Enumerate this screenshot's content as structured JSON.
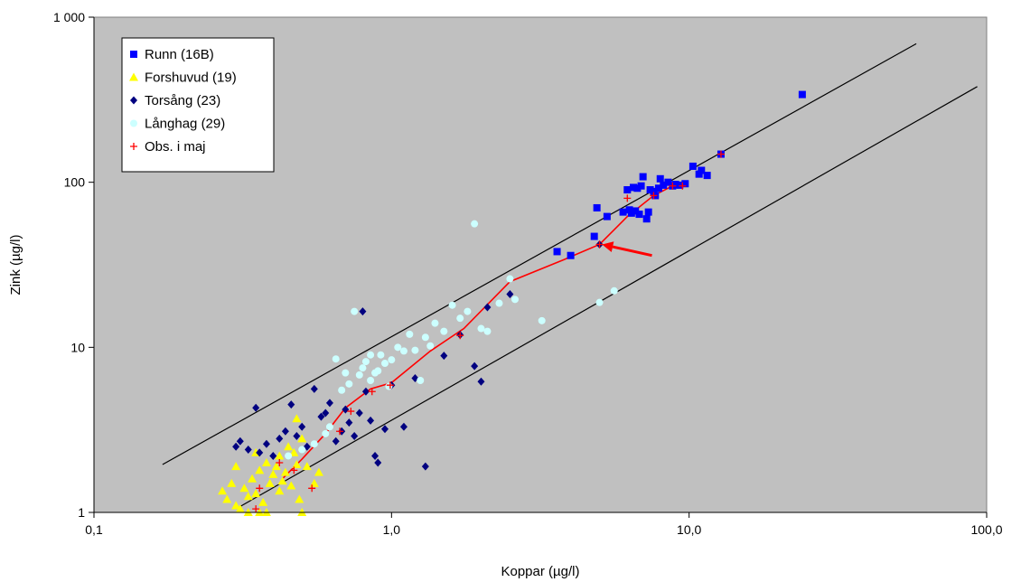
{
  "chart_data": {
    "type": "scatter",
    "x_scale": "log",
    "y_scale": "log",
    "xlim": [
      0.1,
      100
    ],
    "ylim": [
      1,
      1000
    ],
    "xlabel": "Koppar (µg/l)",
    "ylabel": "Zink (µg/l)",
    "x_ticks": [
      {
        "value": 0.1,
        "label": "0,1"
      },
      {
        "value": 1,
        "label": "1,0"
      },
      {
        "value": 10,
        "label": "10,0"
      },
      {
        "value": 100,
        "label": "100,0"
      }
    ],
    "y_ticks": [
      {
        "value": 1,
        "label": "1"
      },
      {
        "value": 10,
        "label": "10"
      },
      {
        "value": 100,
        "label": "100"
      },
      {
        "value": 1000,
        "label": "1 000"
      }
    ],
    "grid": false,
    "legend_position": "top-left",
    "plot_background": "#c0c0c0",
    "series": [
      {
        "name": "Runn (16B)",
        "marker": "square",
        "color": "#0000ff",
        "points": [
          [
            24.0,
            340
          ],
          [
            12.8,
            148
          ],
          [
            11.5,
            110
          ],
          [
            11.0,
            118
          ],
          [
            10.8,
            112
          ],
          [
            10.3,
            125
          ],
          [
            9.7,
            98
          ],
          [
            9.3,
            96
          ],
          [
            9.0,
            97
          ],
          [
            8.8,
            95
          ],
          [
            8.5,
            100
          ],
          [
            8.2,
            96
          ],
          [
            8.0,
            105
          ],
          [
            7.9,
            92
          ],
          [
            7.7,
            83
          ],
          [
            7.6,
            88
          ],
          [
            7.4,
            90
          ],
          [
            7.3,
            66
          ],
          [
            7.2,
            60
          ],
          [
            7.0,
            108
          ],
          [
            6.9,
            95
          ],
          [
            6.8,
            64
          ],
          [
            6.7,
            92
          ],
          [
            6.6,
            67
          ],
          [
            6.5,
            93
          ],
          [
            6.4,
            65
          ],
          [
            6.3,
            68
          ],
          [
            6.2,
            90
          ],
          [
            6.0,
            66
          ],
          [
            5.3,
            62
          ],
          [
            4.9,
            70
          ],
          [
            4.8,
            47
          ],
          [
            4.0,
            36
          ],
          [
            3.6,
            38
          ]
        ]
      },
      {
        "name": "Forshuvud (19)",
        "marker": "triangle",
        "color": "#ffff00",
        "points": [
          [
            0.27,
            1.35
          ],
          [
            0.28,
            1.2
          ],
          [
            0.29,
            1.5
          ],
          [
            0.3,
            1.1
          ],
          [
            0.31,
            1.05
          ],
          [
            0.32,
            1.4
          ],
          [
            0.33,
            1.25
          ],
          [
            0.34,
            1.6
          ],
          [
            0.35,
            1.3
          ],
          [
            0.36,
            1.8
          ],
          [
            0.37,
            1.15
          ],
          [
            0.38,
            2.0
          ],
          [
            0.39,
            1.5
          ],
          [
            0.4,
            1.7
          ],
          [
            0.41,
            1.9
          ],
          [
            0.42,
            2.2
          ],
          [
            0.43,
            1.55
          ],
          [
            0.44,
            1.75
          ],
          [
            0.45,
            2.5
          ],
          [
            0.46,
            1.45
          ],
          [
            0.47,
            2.3
          ],
          [
            0.48,
            1.95
          ],
          [
            0.49,
            1.2
          ],
          [
            0.5,
            2.8
          ],
          [
            0.52,
            1.9
          ],
          [
            0.55,
            1.5
          ],
          [
            0.57,
            1.75
          ],
          [
            0.33,
            1.0
          ],
          [
            0.36,
            1.0
          ],
          [
            0.48,
            3.7
          ],
          [
            0.5,
            1.0
          ],
          [
            0.3,
            1.9
          ],
          [
            0.35,
            2.3
          ],
          [
            0.38,
            1.0
          ],
          [
            0.42,
            1.35
          ]
        ]
      },
      {
        "name": "Torsång (23)",
        "marker": "diamond",
        "color": "#000080",
        "points": [
          [
            0.3,
            2.5
          ],
          [
            0.31,
            2.7
          ],
          [
            0.33,
            2.4
          ],
          [
            0.35,
            4.3
          ],
          [
            0.36,
            2.3
          ],
          [
            0.38,
            2.6
          ],
          [
            0.4,
            2.2
          ],
          [
            0.42,
            2.8
          ],
          [
            0.44,
            3.1
          ],
          [
            0.46,
            4.5
          ],
          [
            0.48,
            2.9
          ],
          [
            0.5,
            3.3
          ],
          [
            0.52,
            2.5
          ],
          [
            0.55,
            5.6
          ],
          [
            0.58,
            3.8
          ],
          [
            0.6,
            4.0
          ],
          [
            0.62,
            4.6
          ],
          [
            0.65,
            2.7
          ],
          [
            0.68,
            3.1
          ],
          [
            0.7,
            4.2
          ],
          [
            0.72,
            3.5
          ],
          [
            0.75,
            2.9
          ],
          [
            0.78,
            4.0
          ],
          [
            0.8,
            16.5
          ],
          [
            0.82,
            5.4
          ],
          [
            0.85,
            3.6
          ],
          [
            0.88,
            2.2
          ],
          [
            0.9,
            2.0
          ],
          [
            0.95,
            3.2
          ],
          [
            1.0,
            5.9
          ],
          [
            1.1,
            3.3
          ],
          [
            1.2,
            6.5
          ],
          [
            1.3,
            1.9
          ],
          [
            1.5,
            8.9
          ],
          [
            1.7,
            11.9
          ],
          [
            1.9,
            7.7
          ],
          [
            2.0,
            6.2
          ],
          [
            2.1,
            17.5
          ],
          [
            2.5,
            21
          ],
          [
            5.0,
            42
          ]
        ]
      },
      {
        "name": "Långhag (29)",
        "marker": "circle",
        "color": "#ccffff",
        "points": [
          [
            0.45,
            2.2
          ],
          [
            0.5,
            2.4
          ],
          [
            0.55,
            2.6
          ],
          [
            0.6,
            3.0
          ],
          [
            0.62,
            3.3
          ],
          [
            0.65,
            8.5
          ],
          [
            0.68,
            5.5
          ],
          [
            0.7,
            7.0
          ],
          [
            0.72,
            6.0
          ],
          [
            0.75,
            16.5
          ],
          [
            0.78,
            6.8
          ],
          [
            0.8,
            7.5
          ],
          [
            0.82,
            8.2
          ],
          [
            0.85,
            6.3
          ],
          [
            0.88,
            7.0
          ],
          [
            0.9,
            7.2
          ],
          [
            0.92,
            9.0
          ],
          [
            0.95,
            8.0
          ],
          [
            1.0,
            8.4
          ],
          [
            1.05,
            10.0
          ],
          [
            1.1,
            9.5
          ],
          [
            1.15,
            12.0
          ],
          [
            1.2,
            9.6
          ],
          [
            1.25,
            6.3
          ],
          [
            1.3,
            11.5
          ],
          [
            1.4,
            14.0
          ],
          [
            1.5,
            12.5
          ],
          [
            1.6,
            18.0
          ],
          [
            1.7,
            15.0
          ],
          [
            1.8,
            16.5
          ],
          [
            1.9,
            56
          ],
          [
            2.0,
            13.0
          ],
          [
            2.1,
            12.5
          ],
          [
            2.3,
            18.5
          ],
          [
            2.5,
            26.0
          ],
          [
            2.6,
            19.5
          ],
          [
            3.2,
            14.5
          ],
          [
            5.0,
            18.7
          ],
          [
            5.6,
            22.0
          ],
          [
            0.98,
            5.8
          ],
          [
            1.35,
            10.2
          ],
          [
            0.85,
            9.0
          ]
        ]
      },
      {
        "name": "Obs. i maj",
        "marker": "plus",
        "color": "#ff0000",
        "points": [
          [
            0.35,
            1.05
          ],
          [
            0.36,
            1.4
          ],
          [
            0.42,
            2.0
          ],
          [
            0.47,
            1.8
          ],
          [
            0.54,
            1.4
          ],
          [
            0.67,
            3.1
          ],
          [
            0.73,
            4.1
          ],
          [
            0.86,
            5.4
          ],
          [
            0.99,
            5.9
          ],
          [
            1.7,
            11.8
          ],
          [
            5.0,
            42
          ],
          [
            6.2,
            80
          ],
          [
            7.6,
            83
          ],
          [
            8.8,
            95
          ],
          [
            9.5,
            95
          ],
          [
            12.8,
            148
          ]
        ]
      }
    ],
    "lines": [
      {
        "name": "upper bound",
        "color": "#000000",
        "points": [
          [
            0.17,
            1.95
          ],
          [
            58,
            690
          ]
        ]
      },
      {
        "name": "lower bound",
        "color": "#000000",
        "points": [
          [
            0.3,
            1.05
          ],
          [
            93,
            380
          ]
        ]
      },
      {
        "name": "May trend",
        "color": "#ff0000",
        "points": [
          [
            0.43,
            1.6
          ],
          [
            0.5,
            2.1
          ],
          [
            0.6,
            3.0
          ],
          [
            0.7,
            4.3
          ],
          [
            0.85,
            5.6
          ],
          [
            1.0,
            6.1
          ],
          [
            1.35,
            9.5
          ],
          [
            1.75,
            13.0
          ],
          [
            2.5,
            25.0
          ],
          [
            3.8,
            34.0
          ],
          [
            5.0,
            42.0
          ],
          [
            6.2,
            62.0
          ],
          [
            7.6,
            83.0
          ],
          [
            8.8,
            95.0
          ]
        ]
      }
    ],
    "annotations": [
      {
        "type": "arrow",
        "color": "#ff0000",
        "from": [
          7.5,
          36
        ],
        "to": [
          5.1,
          42
        ]
      }
    ]
  }
}
